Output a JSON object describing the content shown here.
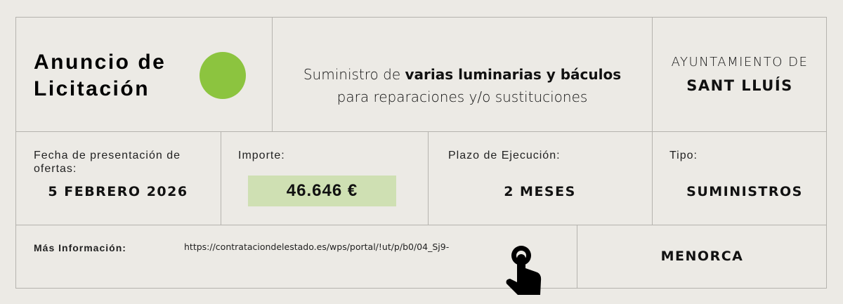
{
  "header": {
    "title_line1": "Anuncio de",
    "title_line2": "Licitación",
    "accent_color": "#8CC43F",
    "subject_pre": "Suministro de ",
    "subject_bold": "varias luminarias y báculos",
    "subject_line2": "para reparaciones y/o sustituciones",
    "entity_line1": "AYUNTAMIENTO DE",
    "entity_line2": "SANT LLUÍS"
  },
  "details": {
    "deadline_label": "Fecha de presentación de ofertas:",
    "deadline_value": "5 FEBRERO 2026",
    "amount_label": "Importe:",
    "amount_value": "46.646 €",
    "term_label": "Plazo de Ejecución:",
    "term_value": "2 MESES",
    "type_label": "Tipo:",
    "type_value": "SUMINISTROS"
  },
  "footer": {
    "info_label": "Más Información:",
    "url": "https://contrataciondelestado.es/wps/portal/!ut/p/b0/04_Sj9-",
    "icon": "pointing-hand-icon",
    "region": "MENORCA"
  }
}
